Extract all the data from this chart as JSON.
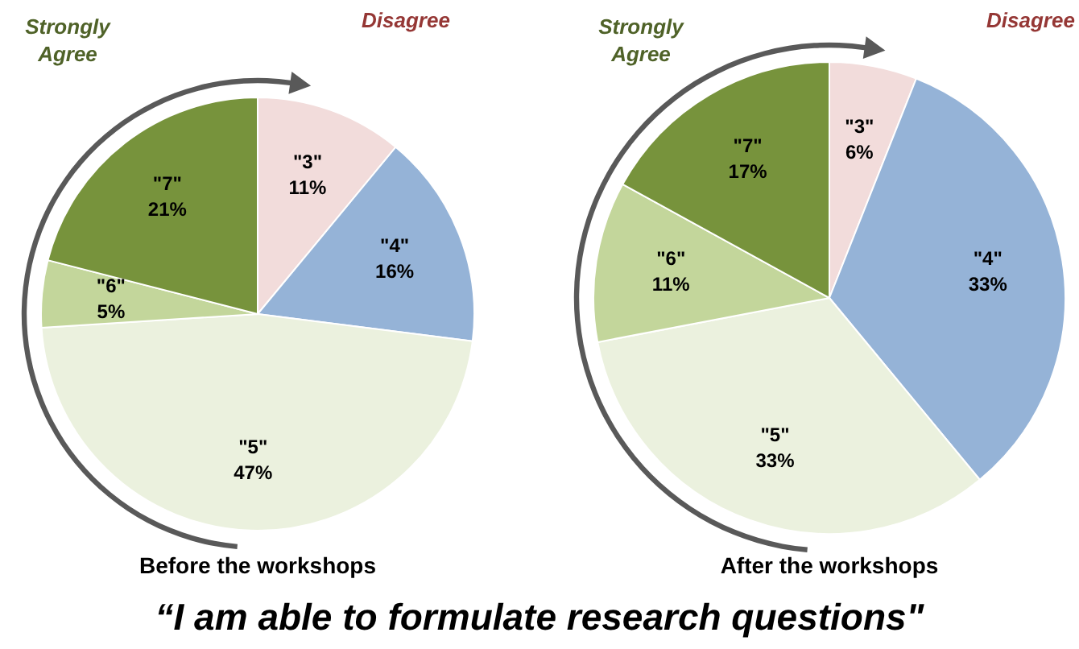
{
  "chart_data": [
    {
      "type": "pie",
      "title": "Before the workshops",
      "categories": [
        "\"3\"",
        "\"4\"",
        "\"5\"",
        "\"6\"",
        "\"7\""
      ],
      "values": [
        11,
        16,
        47,
        5,
        21
      ],
      "value_labels": [
        "11%",
        "16%",
        "47%",
        "5%",
        "21%"
      ],
      "colors": [
        "#f2dcdb",
        "#95b3d7",
        "#ebf1de",
        "#c3d69b",
        "#77933c"
      ],
      "legend": false,
      "annotations": [
        "Strongly Agree",
        "Disagree"
      ]
    },
    {
      "type": "pie",
      "title": "After the workshops",
      "categories": [
        "\"3\"",
        "\"4\"",
        "\"5\"",
        "\"6\"",
        "\"7\""
      ],
      "values": [
        6,
        33,
        33,
        11,
        17
      ],
      "value_labels": [
        "6%",
        "33%",
        "33%",
        "11%",
        "17%"
      ],
      "colors": [
        "#f2dcdb",
        "#95b3d7",
        "#ebf1de",
        "#c3d69b",
        "#77933c"
      ],
      "legend": false,
      "annotations": [
        "Strongly Agree",
        "Disagree"
      ]
    },
    {
      "type": "other",
      "title": "“I am able to formulate research questions\""
    }
  ]
}
